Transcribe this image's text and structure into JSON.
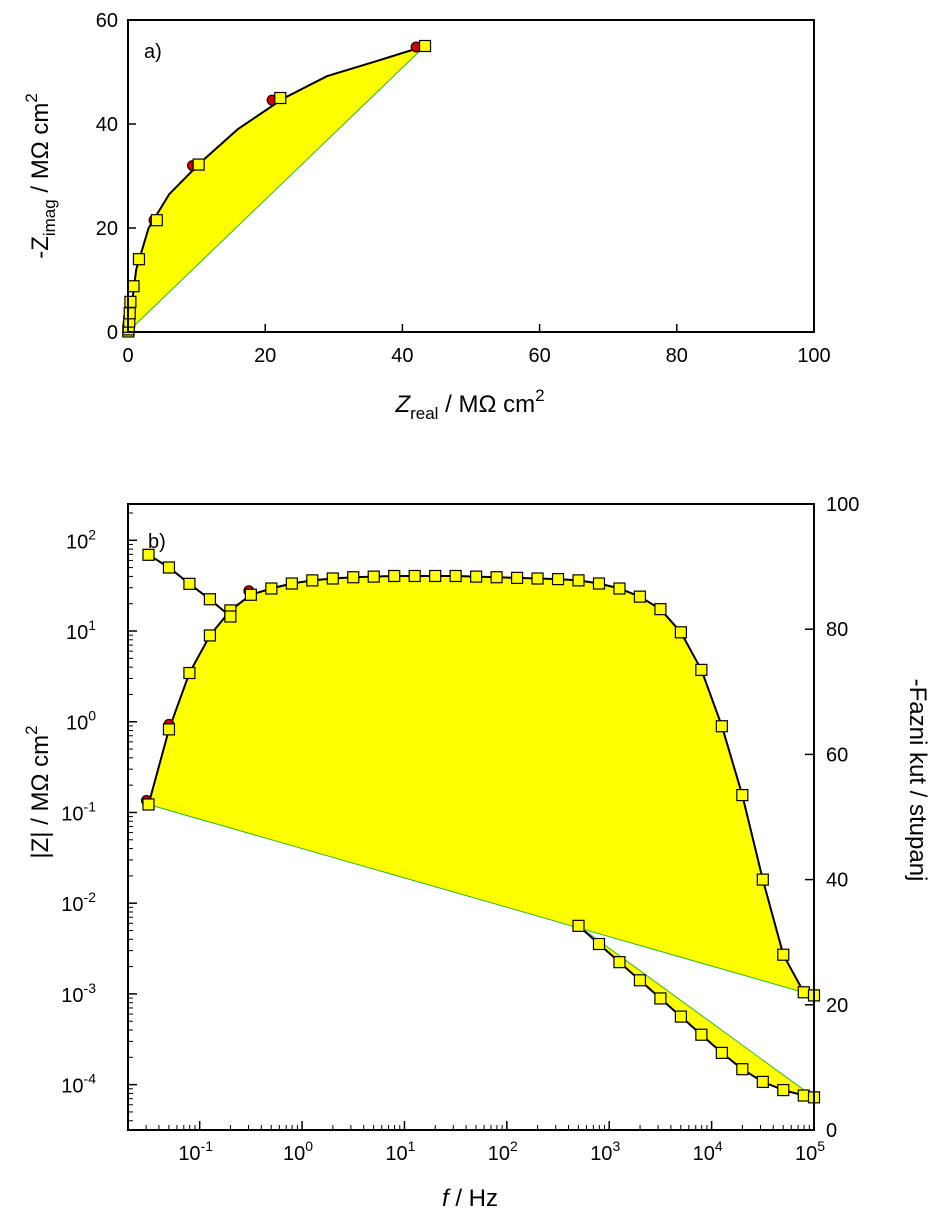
{
  "chart_data": [
    {
      "type": "scatter",
      "panel_label": "a)",
      "xlabel": {
        "main": "Z",
        "sub": "real",
        "rest": " / MΩ cm",
        "sup": "2"
      },
      "ylabel": {
        "main": "-Z",
        "sub": "imag",
        "rest": " / MΩ cm",
        "sup": "2"
      },
      "xlim": [
        0,
        100
      ],
      "ylim": [
        0,
        60
      ],
      "xticks": [
        0,
        20,
        40,
        60,
        80,
        100
      ],
      "yticks": [
        0,
        20,
        40,
        60
      ],
      "grid": false,
      "fill_color": "#ffff00",
      "series": [
        {
          "marker": "circle",
          "color": "#cc0000",
          "points": [
            [
              0.05,
              0.1
            ],
            [
              0.08,
              0.5
            ],
            [
              0.12,
              1.0
            ],
            [
              0.18,
              2.0
            ],
            [
              0.25,
              3.6
            ],
            [
              0.35,
              5.8
            ],
            [
              0.8,
              8.8
            ],
            [
              1.5,
              14.0
            ],
            [
              3.8,
              21.5
            ],
            [
              9.4,
              32.0
            ],
            [
              21.0,
              44.6
            ],
            [
              42.0,
              54.8
            ]
          ]
        },
        {
          "marker": "square",
          "color": "#ffff00",
          "points": [
            [
              0.05,
              0.1
            ],
            [
              0.08,
              0.5
            ],
            [
              0.12,
              1.0
            ],
            [
              0.18,
              2.0
            ],
            [
              0.25,
              3.6
            ],
            [
              0.35,
              5.8
            ],
            [
              0.8,
              8.8
            ],
            [
              1.6,
              14.0
            ],
            [
              4.2,
              21.5
            ],
            [
              10.3,
              32.2
            ],
            [
              22.2,
              45.0
            ],
            [
              43.3,
              55.0
            ]
          ]
        }
      ],
      "fit_line": [
        [
          0.05,
          0.1
        ],
        [
          1.2,
          12.0
        ],
        [
          3.0,
          20.0
        ],
        [
          6.0,
          26.5
        ],
        [
          10.5,
          32.5
        ],
        [
          16.0,
          39.0
        ],
        [
          22.5,
          44.8
        ],
        [
          29.0,
          49.2
        ],
        [
          36.0,
          52.0
        ],
        [
          43.3,
          55.0
        ]
      ]
    },
    {
      "type": "line",
      "panel_label": "b)",
      "xlabel": {
        "main": "f",
        "rest": " / Hz"
      },
      "ylabel_left": "|Z| / MΩ cm",
      "ylabel_left_sup": "2",
      "ylabel_right": "-Fazni kut / stupanj",
      "x_scale": "log",
      "xlim_exp": [
        -1.7,
        5
      ],
      "xtick_exps": [
        -1,
        0,
        1,
        2,
        3,
        4,
        5
      ],
      "y_left_scale": "log",
      "y_left_exp": [
        -4.5,
        2.4
      ],
      "ytick_left_exps": [
        -4,
        -3,
        -2,
        -1,
        0,
        1,
        2
      ],
      "y_right_lim": [
        0,
        100
      ],
      "ytick_right": [
        0,
        20,
        40,
        60,
        80,
        100
      ],
      "tick_base": "10",
      "grid": false,
      "fill_color": "#ffff00",
      "modulus_series": {
        "x_exp": [
          -1.5,
          -1.3,
          -1.1,
          -0.9,
          -0.7
        ],
        "y_exp": [
          1.84,
          1.7,
          1.52,
          1.35,
          1.16
        ],
        "x_exp_2": [
          2.7,
          2.9,
          3.1,
          3.3,
          3.5,
          3.7,
          3.9,
          4.1,
          4.3,
          4.5,
          4.7,
          4.9,
          5.0
        ],
        "y_exp_2": [
          -2.25,
          -2.45,
          -2.65,
          -2.85,
          -3.05,
          -3.25,
          -3.45,
          -3.65,
          -3.83,
          -3.97,
          -4.06,
          -4.12,
          -4.14
        ]
      },
      "phase_series": {
        "x_exp": [
          -1.5,
          -1.3,
          -1.1,
          -0.9,
          -0.7,
          -0.5,
          -0.3,
          -0.1,
          0.1,
          0.3,
          0.5,
          0.7,
          0.9,
          1.1,
          1.3,
          1.5,
          1.7,
          1.9,
          2.1,
          2.3,
          2.5,
          2.7,
          2.9,
          3.1,
          3.3,
          3.5,
          3.7,
          3.9,
          4.1,
          4.3,
          4.5,
          4.7,
          4.9,
          5.0
        ],
        "y": [
          52,
          64,
          73,
          79,
          83,
          85.5,
          86.5,
          87.3,
          87.8,
          88.1,
          88.3,
          88.4,
          88.5,
          88.5,
          88.5,
          88.5,
          88.4,
          88.3,
          88.2,
          88.1,
          88.0,
          87.8,
          87.3,
          86.5,
          85.2,
          83.2,
          79.5,
          73.5,
          64.5,
          53.5,
          40.0,
          28.0,
          22.0,
          21.5
        ]
      }
    }
  ]
}
